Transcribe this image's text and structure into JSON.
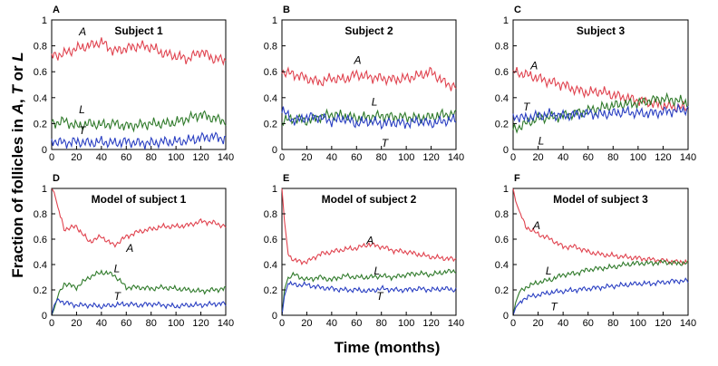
{
  "figure": {
    "ylabel_parts": [
      "Fraction of follicles in ",
      "A",
      ", ",
      "T",
      " or ",
      "L"
    ],
    "xlabel": "Time (months)"
  },
  "colors": {
    "A": "#e0434f",
    "L": "#2f7a2a",
    "T": "#2a3fc2"
  },
  "chart_data": [
    {
      "type": "line",
      "panel": "A",
      "title": "Subject 1",
      "xlabel": "Time (months)",
      "ylabel": "Fraction of follicles",
      "xlim": [
        0,
        140
      ],
      "ylim": [
        0,
        1
      ],
      "xticks": [
        0,
        20,
        40,
        60,
        80,
        100,
        120,
        140
      ],
      "yticks": [
        0,
        0.2,
        0.4,
        0.6,
        0.8,
        1
      ],
      "series": [
        {
          "name": "A",
          "color": "#e0434f",
          "x": [
            0,
            10,
            20,
            30,
            40,
            50,
            60,
            70,
            80,
            90,
            100,
            110,
            120,
            130,
            140
          ],
          "y": [
            0.72,
            0.74,
            0.78,
            0.8,
            0.83,
            0.76,
            0.78,
            0.8,
            0.79,
            0.74,
            0.72,
            0.7,
            0.76,
            0.7,
            0.69
          ]
        },
        {
          "name": "L",
          "color": "#2f7a2a",
          "x": [
            0,
            10,
            20,
            30,
            40,
            50,
            60,
            70,
            80,
            90,
            100,
            110,
            120,
            130,
            140
          ],
          "y": [
            0.2,
            0.22,
            0.18,
            0.2,
            0.19,
            0.2,
            0.18,
            0.19,
            0.2,
            0.2,
            0.21,
            0.24,
            0.27,
            0.24,
            0.22
          ]
        },
        {
          "name": "T",
          "color": "#2a3fc2",
          "x": [
            0,
            10,
            20,
            30,
            40,
            50,
            60,
            70,
            80,
            90,
            100,
            110,
            120,
            130,
            140
          ],
          "y": [
            0.07,
            0.05,
            0.06,
            0.05,
            0.06,
            0.05,
            0.06,
            0.05,
            0.05,
            0.06,
            0.06,
            0.07,
            0.09,
            0.1,
            0.08
          ]
        }
      ],
      "annotations": [
        "A",
        "L",
        "T"
      ]
    },
    {
      "type": "line",
      "panel": "B",
      "title": "Subject 2",
      "xlabel": "Time (months)",
      "ylabel": "Fraction of follicles",
      "xlim": [
        0,
        140
      ],
      "ylim": [
        0,
        1
      ],
      "xticks": [
        0,
        20,
        40,
        60,
        80,
        100,
        120,
        140
      ],
      "yticks": [
        0,
        0.2,
        0.4,
        0.6,
        0.8,
        1
      ],
      "series": [
        {
          "name": "A",
          "color": "#e0434f",
          "x": [
            0,
            10,
            20,
            30,
            40,
            50,
            60,
            70,
            80,
            90,
            100,
            110,
            120,
            130,
            140
          ],
          "y": [
            0.6,
            0.58,
            0.55,
            0.52,
            0.55,
            0.54,
            0.58,
            0.56,
            0.55,
            0.54,
            0.55,
            0.57,
            0.6,
            0.52,
            0.48
          ]
        },
        {
          "name": "L",
          "color": "#2f7a2a",
          "x": [
            0,
            10,
            20,
            30,
            40,
            50,
            60,
            70,
            80,
            90,
            100,
            110,
            120,
            130,
            140
          ],
          "y": [
            0.22,
            0.24,
            0.22,
            0.25,
            0.27,
            0.26,
            0.24,
            0.25,
            0.26,
            0.25,
            0.25,
            0.24,
            0.25,
            0.27,
            0.27
          ]
        },
        {
          "name": "T",
          "color": "#2a3fc2",
          "x": [
            0,
            10,
            20,
            30,
            40,
            50,
            60,
            70,
            80,
            90,
            100,
            110,
            120,
            130,
            140
          ],
          "y": [
            0.3,
            0.22,
            0.25,
            0.25,
            0.22,
            0.24,
            0.2,
            0.22,
            0.2,
            0.21,
            0.2,
            0.22,
            0.2,
            0.22,
            0.23
          ]
        }
      ],
      "annotations": [
        "A",
        "L",
        "T"
      ]
    },
    {
      "type": "line",
      "panel": "C",
      "title": "Subject 3",
      "xlabel": "Time (months)",
      "ylabel": "Fraction of follicles",
      "xlim": [
        0,
        140
      ],
      "ylim": [
        0,
        1
      ],
      "xticks": [
        0,
        20,
        40,
        60,
        80,
        100,
        120,
        140
      ],
      "yticks": [
        0,
        0.2,
        0.4,
        0.6,
        0.8,
        1
      ],
      "series": [
        {
          "name": "A",
          "color": "#e0434f",
          "x": [
            0,
            10,
            20,
            30,
            40,
            50,
            60,
            70,
            80,
            90,
            100,
            110,
            120,
            130,
            140
          ],
          "y": [
            0.6,
            0.58,
            0.55,
            0.52,
            0.5,
            0.46,
            0.44,
            0.45,
            0.42,
            0.4,
            0.38,
            0.36,
            0.34,
            0.33,
            0.32
          ]
        },
        {
          "name": "L",
          "color": "#2f7a2a",
          "x": [
            0,
            10,
            20,
            30,
            40,
            50,
            60,
            70,
            80,
            90,
            100,
            110,
            120,
            130,
            140
          ],
          "y": [
            0.15,
            0.2,
            0.24,
            0.25,
            0.26,
            0.28,
            0.3,
            0.32,
            0.34,
            0.35,
            0.36,
            0.38,
            0.39,
            0.38,
            0.36
          ]
        },
        {
          "name": "T",
          "color": "#2a3fc2",
          "x": [
            0,
            10,
            20,
            30,
            40,
            50,
            60,
            70,
            80,
            90,
            100,
            110,
            120,
            130,
            140
          ],
          "y": [
            0.26,
            0.24,
            0.26,
            0.27,
            0.26,
            0.27,
            0.28,
            0.27,
            0.28,
            0.29,
            0.28,
            0.28,
            0.29,
            0.3,
            0.31
          ]
        }
      ],
      "annotations": [
        "A",
        "T",
        "L"
      ]
    },
    {
      "type": "line",
      "panel": "D",
      "title": "Model of subject 1",
      "xlabel": "Time (months)",
      "ylabel": "Fraction of follicles",
      "xlim": [
        0,
        140
      ],
      "ylim": [
        0,
        1
      ],
      "xticks": [
        0,
        20,
        40,
        60,
        80,
        100,
        120,
        140
      ],
      "yticks": [
        0,
        0.2,
        0.4,
        0.6,
        0.8,
        1
      ],
      "series": [
        {
          "name": "A",
          "color": "#e0434f",
          "x": [
            0,
            2,
            5,
            10,
            20,
            30,
            40,
            50,
            60,
            70,
            80,
            90,
            100,
            110,
            120,
            130,
            140
          ],
          "y": [
            1.0,
            0.97,
            0.85,
            0.68,
            0.7,
            0.58,
            0.62,
            0.55,
            0.62,
            0.66,
            0.68,
            0.7,
            0.7,
            0.71,
            0.74,
            0.73,
            0.7
          ]
        },
        {
          "name": "L",
          "color": "#2f7a2a",
          "x": [
            0,
            2,
            5,
            10,
            20,
            30,
            40,
            50,
            60,
            70,
            80,
            90,
            100,
            110,
            120,
            130,
            140
          ],
          "y": [
            0.0,
            0.05,
            0.15,
            0.25,
            0.22,
            0.3,
            0.34,
            0.32,
            0.22,
            0.22,
            0.21,
            0.22,
            0.21,
            0.2,
            0.19,
            0.2,
            0.21
          ]
        },
        {
          "name": "T",
          "color": "#2a3fc2",
          "x": [
            0,
            2,
            5,
            10,
            20,
            30,
            40,
            50,
            60,
            70,
            80,
            90,
            100,
            110,
            120,
            130,
            140
          ],
          "y": [
            0.0,
            0.08,
            0.13,
            0.1,
            0.08,
            0.08,
            0.07,
            0.08,
            0.09,
            0.08,
            0.09,
            0.08,
            0.07,
            0.08,
            0.08,
            0.09,
            0.09
          ]
        }
      ],
      "annotations": [
        "A",
        "L",
        "T"
      ]
    },
    {
      "type": "line",
      "panel": "E",
      "title": "Model of subject 2",
      "xlabel": "Time (months)",
      "ylabel": "Fraction of follicles",
      "xlim": [
        0,
        140
      ],
      "ylim": [
        0,
        1
      ],
      "xticks": [
        0,
        20,
        40,
        60,
        80,
        100,
        120,
        140
      ],
      "yticks": [
        0,
        0.2,
        0.4,
        0.6,
        0.8,
        1
      ],
      "series": [
        {
          "name": "A",
          "color": "#e0434f",
          "x": [
            0,
            2,
            5,
            10,
            20,
            30,
            40,
            50,
            60,
            70,
            80,
            90,
            100,
            110,
            120,
            130,
            140
          ],
          "y": [
            1.0,
            0.75,
            0.48,
            0.43,
            0.42,
            0.48,
            0.5,
            0.52,
            0.53,
            0.56,
            0.54,
            0.51,
            0.5,
            0.48,
            0.46,
            0.45,
            0.44
          ]
        },
        {
          "name": "L",
          "color": "#2f7a2a",
          "x": [
            0,
            2,
            5,
            10,
            20,
            30,
            40,
            50,
            60,
            70,
            80,
            90,
            100,
            110,
            120,
            130,
            140
          ],
          "y": [
            0.0,
            0.2,
            0.3,
            0.32,
            0.28,
            0.3,
            0.28,
            0.31,
            0.3,
            0.3,
            0.31,
            0.3,
            0.32,
            0.33,
            0.32,
            0.34,
            0.35
          ]
        },
        {
          "name": "T",
          "color": "#2a3fc2",
          "x": [
            0,
            2,
            5,
            10,
            20,
            30,
            40,
            50,
            60,
            70,
            80,
            90,
            100,
            110,
            120,
            130,
            140
          ],
          "y": [
            0.0,
            0.15,
            0.25,
            0.24,
            0.24,
            0.22,
            0.21,
            0.2,
            0.2,
            0.19,
            0.21,
            0.2,
            0.2,
            0.21,
            0.2,
            0.21,
            0.2
          ]
        }
      ],
      "annotations": [
        "A",
        "L",
        "T"
      ]
    },
    {
      "type": "line",
      "panel": "F",
      "title": "Model of subject 3",
      "xlabel": "Time (months)",
      "ylabel": "Fraction of follicles",
      "xlim": [
        0,
        140
      ],
      "ylim": [
        0,
        1
      ],
      "xticks": [
        0,
        20,
        40,
        60,
        80,
        100,
        120,
        140
      ],
      "yticks": [
        0,
        0.2,
        0.4,
        0.6,
        0.8,
        1
      ],
      "series": [
        {
          "name": "A",
          "color": "#e0434f",
          "x": [
            0,
            2,
            5,
            10,
            20,
            30,
            40,
            50,
            60,
            70,
            80,
            90,
            100,
            110,
            120,
            130,
            140
          ],
          "y": [
            1.0,
            0.9,
            0.82,
            0.7,
            0.64,
            0.6,
            0.54,
            0.54,
            0.5,
            0.48,
            0.47,
            0.46,
            0.45,
            0.44,
            0.43,
            0.42,
            0.42
          ]
        },
        {
          "name": "L",
          "color": "#2f7a2a",
          "x": [
            0,
            2,
            5,
            10,
            20,
            30,
            40,
            50,
            60,
            70,
            80,
            90,
            100,
            110,
            120,
            130,
            140
          ],
          "y": [
            0.0,
            0.1,
            0.18,
            0.22,
            0.26,
            0.28,
            0.32,
            0.33,
            0.36,
            0.37,
            0.38,
            0.4,
            0.41,
            0.41,
            0.42,
            0.41,
            0.41
          ]
        },
        {
          "name": "T",
          "color": "#2a3fc2",
          "x": [
            0,
            2,
            5,
            10,
            20,
            30,
            40,
            50,
            60,
            70,
            80,
            90,
            100,
            110,
            120,
            130,
            140
          ],
          "y": [
            0.0,
            0.06,
            0.1,
            0.14,
            0.16,
            0.18,
            0.19,
            0.2,
            0.21,
            0.22,
            0.23,
            0.24,
            0.25,
            0.25,
            0.26,
            0.27,
            0.27
          ]
        }
      ],
      "annotations": [
        "A",
        "L",
        "T"
      ]
    }
  ]
}
